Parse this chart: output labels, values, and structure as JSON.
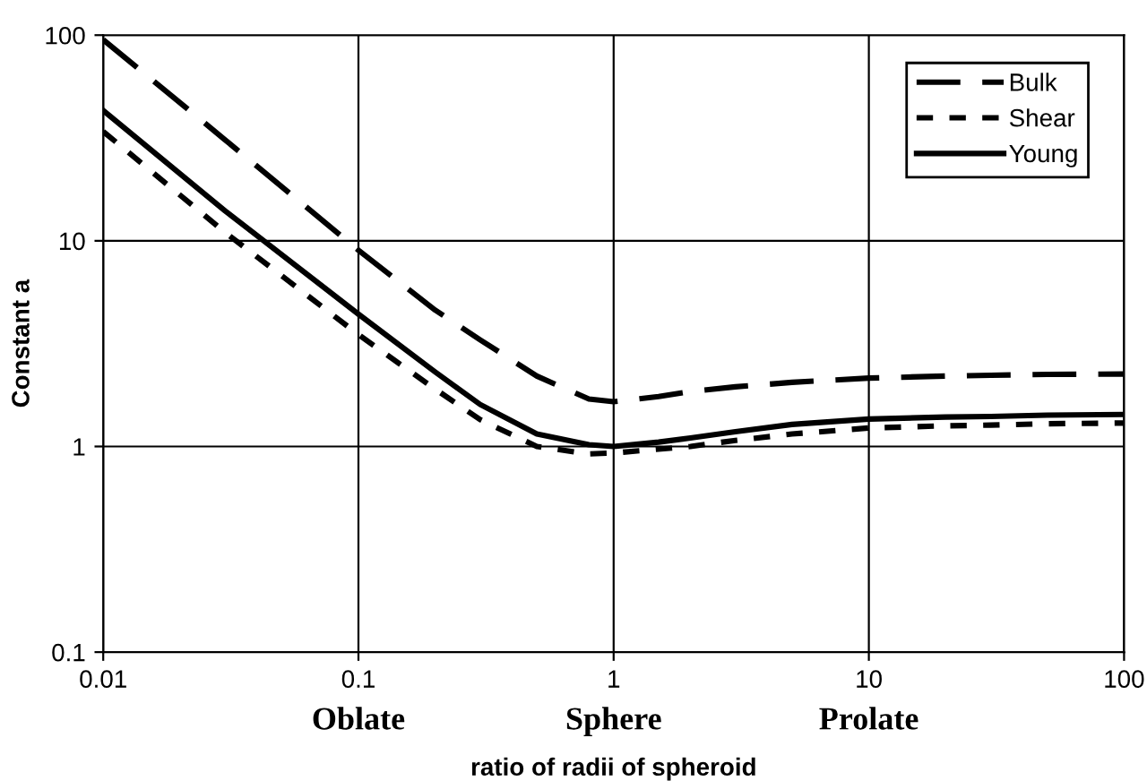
{
  "chart_data": {
    "type": "line",
    "xlabel": "ratio of radii of spheroid",
    "ylabel": "Constant a",
    "log": "xy",
    "xlim": [
      0.01,
      100
    ],
    "ylim": [
      0.1,
      100
    ],
    "xticks": [
      0.01,
      0.1,
      1,
      10,
      100
    ],
    "yticks": [
      0.1,
      1,
      10,
      100
    ],
    "grid": true,
    "legend": "top right",
    "x": [
      0.01,
      0.03,
      0.1,
      0.2,
      0.3,
      0.5,
      0.8,
      1,
      1.5,
      2,
      3,
      5,
      10,
      20,
      30,
      50,
      100
    ],
    "series": [
      {
        "name": "Bulk",
        "color": "#000000",
        "line_style": "longdash",
        "values": [
          95,
          31,
          9,
          4.6,
          3.3,
          2.2,
          1.7,
          1.65,
          1.75,
          1.85,
          1.95,
          2.05,
          2.15,
          2.2,
          2.22,
          2.24,
          2.25
        ]
      },
      {
        "name": "Shear",
        "color": "#000000",
        "line_style": "dashed",
        "values": [
          34,
          11,
          3.5,
          1.9,
          1.35,
          1.0,
          0.92,
          0.93,
          0.97,
          1.0,
          1.07,
          1.15,
          1.23,
          1.26,
          1.27,
          1.29,
          1.3
        ]
      },
      {
        "name": "Young",
        "color": "#000000",
        "line_style": "solid",
        "values": [
          43,
          14,
          4.4,
          2.3,
          1.6,
          1.15,
          1.02,
          1.0,
          1.05,
          1.1,
          1.18,
          1.28,
          1.36,
          1.39,
          1.4,
          1.42,
          1.43
        ]
      }
    ],
    "annotations": [
      "Oblate",
      "Sphere",
      "Prolate"
    ]
  }
}
